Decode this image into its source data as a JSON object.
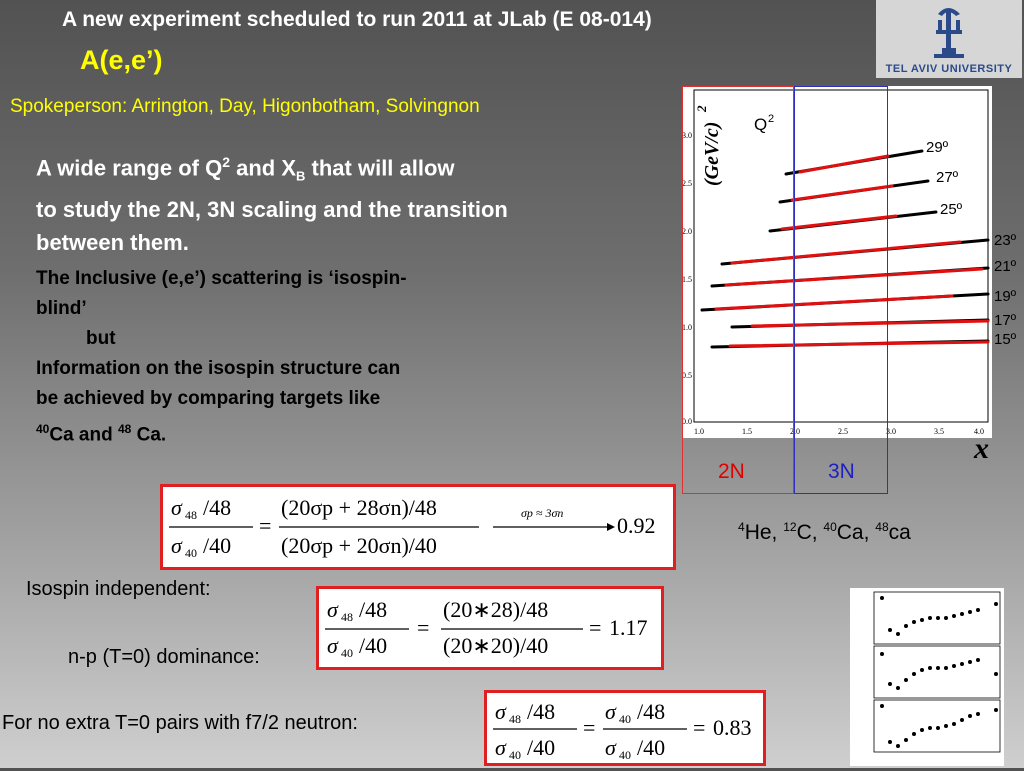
{
  "header": {
    "title": "A new experiment scheduled to run 2011 at JLab (E  08-014)",
    "subtitle": "A(e,e’)",
    "logo_text": "TEL AVIV UNIVERSITY"
  },
  "spokesperson": "Spokeperson: Arrington, Day, Higonbotham, Solvingnon",
  "para1": {
    "line1_a": "A wide range of Q",
    "line1_sup": "2",
    "line1_b": " and X",
    "line1_sub": "B",
    "line1_c": " that will allow",
    "line2": "to study the 2N, 3N scaling and the transition",
    "line3": "between them."
  },
  "para2": {
    "line1": "The Inclusive (e,e’) scattering is ‘isospin-",
    "line2": "blind’",
    "line3": "but",
    "line4": "Information on the isospin structure can",
    "line5": "be achieved by comparing targets like",
    "line6_sup1": "40",
    "line6_a": "Ca and ",
    "line6_sup2": "48",
    "line6_b": " Ca."
  },
  "plot": {
    "y_axis_label": "(GeV/c)",
    "y_axis_sup": "2",
    "q2_label": "Q",
    "q2_sup": "2",
    "x_axis_label": "x",
    "x_ticks": [
      "1.0",
      "1.5",
      "2.0",
      "2.5",
      "3.0",
      "3.5",
      "4.0"
    ],
    "y_ticks": [
      "0.0",
      "0.5",
      "1.0",
      "1.5",
      "2.0",
      "2.5",
      "3.0"
    ],
    "angles": [
      "29º",
      "27º",
      "25º",
      "23º",
      "21º",
      "19º",
      "17º",
      "15º"
    ],
    "region_2n": "2N",
    "region_3n": "3N"
  },
  "formulas": {
    "f1": {
      "left_num": "/48",
      "left_den": "/40",
      "right_num": "(20σp + 28σn)/48",
      "right_den": "(20σp + 20σn)/40",
      "arrow_label": "σp ≈ 3σn",
      "result": "0.92"
    },
    "f2": {
      "left_num": "/48",
      "left_den": "/40",
      "right_num": "(20∗28)/48",
      "right_den": "(20∗20)/40",
      "result": "1.17"
    },
    "f3": {
      "left_num": "/48",
      "left_den": "/40",
      "mid_num": "/48",
      "mid_den": "/40",
      "result": "0.83"
    }
  },
  "labels": {
    "isospin_independent": "Isospin independent:",
    "np_dominance": "n-p (T=0) dominance:",
    "no_extra": "For no extra T=0 pairs with f7/2 neutron:"
  },
  "targets": {
    "he_sup": "4",
    "he": "He, ",
    "c_sup": "12",
    "c": "C, ",
    "ca40_sup": "40",
    "ca40": "Ca, ",
    "ca48_sup": "48",
    "ca48": "ca"
  }
}
